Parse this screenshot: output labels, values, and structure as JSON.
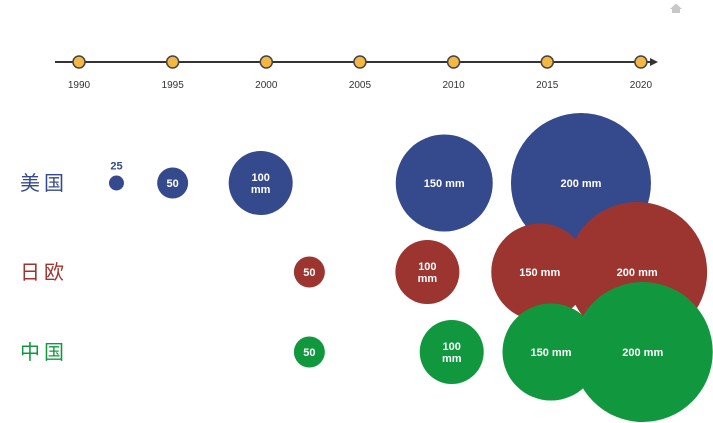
{
  "chart_data": {
    "type": "bubble",
    "title": "",
    "timeline": {
      "years": [
        "1990",
        "1995",
        "2000",
        "2005",
        "2010",
        "2015",
        "2020"
      ]
    },
    "series": [
      {
        "name": "美国",
        "color": "#354a8c",
        "points": [
          {
            "year": 1992,
            "wafer_mm": 25,
            "label": "25"
          },
          {
            "year": 1995,
            "wafer_mm": 50,
            "label": "50"
          },
          {
            "year": 1999.7,
            "wafer_mm": 100,
            "label": "100\nmm"
          },
          {
            "year": 2009.5,
            "wafer_mm": 150,
            "label": "150 mm"
          },
          {
            "year": 2016.8,
            "wafer_mm": 200,
            "label": "200 mm"
          }
        ]
      },
      {
        "name": "日欧",
        "color": "#9c3530",
        "points": [
          {
            "year": 2002.3,
            "wafer_mm": 50,
            "label": "50"
          },
          {
            "year": 2008.6,
            "wafer_mm": 100,
            "label": "100\nmm"
          },
          {
            "year": 2014.6,
            "wafer_mm": 150,
            "label": "150 mm"
          },
          {
            "year": 2019.8,
            "wafer_mm": 200,
            "label": "200 mm"
          }
        ]
      },
      {
        "name": "中国",
        "color": "#11983f",
        "points": [
          {
            "year": 2002.3,
            "wafer_mm": 50,
            "label": "50"
          },
          {
            "year": 2009.9,
            "wafer_mm": 100,
            "label": "100\nmm"
          },
          {
            "year": 2015.2,
            "wafer_mm": 150,
            "label": "150 mm"
          },
          {
            "year": 2020.1,
            "wafer_mm": 200,
            "label": "200 mm"
          }
        ]
      }
    ],
    "colors": {
      "timeline_line": "#333333",
      "timeline_dot": "#f2b744",
      "timeline_dot_stroke": "#444444"
    }
  }
}
